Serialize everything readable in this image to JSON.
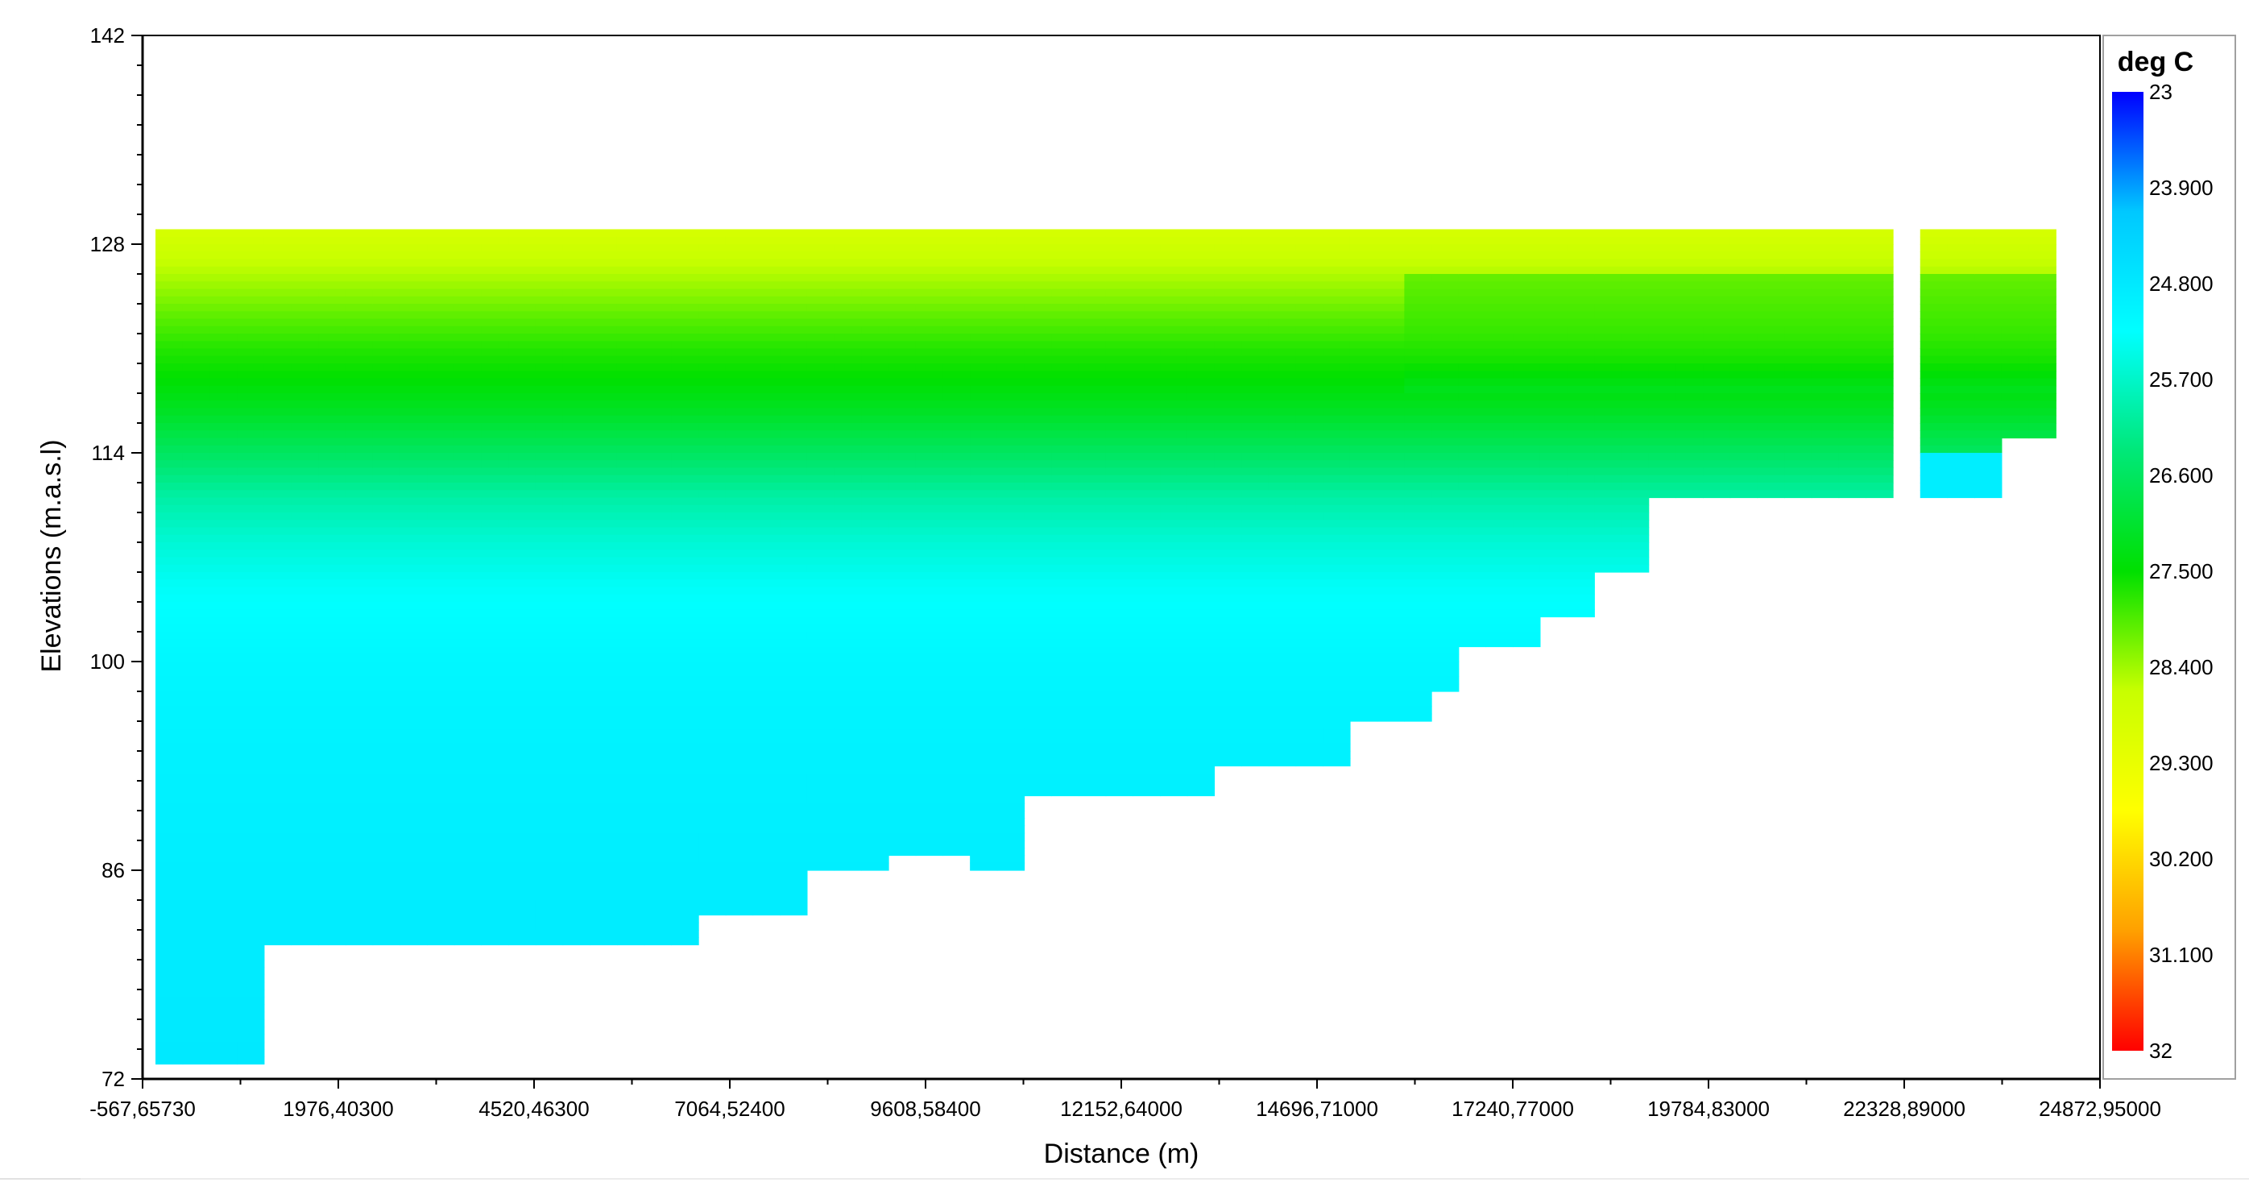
{
  "chart_data": {
    "type": "heatmap",
    "xlabel": "Distance (m)",
    "ylabel": "Elevations (m.a.s.l)",
    "x_ticks": [
      "-567,65730",
      "1976,40300",
      "4520,46300",
      "7064,52400",
      "9608,58400",
      "12152,64000",
      "14696,71000",
      "17240,77000",
      "19784,83000",
      "22328,89000",
      "24872,95000"
    ],
    "x_tick_values": [
      -567.6573,
      1976.403,
      4520.463,
      7064.524,
      9608.584,
      12152.64,
      14696.71,
      17240.77,
      19784.83,
      22328.89,
      24872.95
    ],
    "xlim": [
      -567.6573,
      24872.95
    ],
    "y_ticks": [
      "142",
      "128",
      "114",
      "100",
      "86",
      "72"
    ],
    "y_tick_values": [
      142,
      128,
      114,
      100,
      86,
      72
    ],
    "ylim": [
      72,
      142
    ],
    "colorbar": {
      "title": "deg C",
      "labels": [
        "23",
        "23.900",
        "24.800",
        "25.700",
        "26.600",
        "27.500",
        "28.400",
        "29.300",
        "30.200",
        "31.100",
        "32"
      ],
      "min": 23,
      "max": 32,
      "colormap": [
        "#0000ff",
        "#00c8ff",
        "#00ffff",
        "#00e878",
        "#00e000",
        "#c8ff00",
        "#ffff00",
        "#ffa000",
        "#ff0000"
      ]
    },
    "temperature_profile": {
      "elevation": [
        129,
        126,
        123,
        121,
        119,
        117,
        114,
        111,
        108,
        105,
        100,
        95,
        90,
        85,
        80,
        73
      ],
      "temp": [
        28.9,
        28.5,
        28.0,
        27.7,
        27.5,
        27.2,
        26.6,
        26.0,
        25.6,
        25.3,
        25.1,
        25.0,
        24.95,
        24.9,
        24.85,
        24.8
      ]
    },
    "upstream_profile": {
      "elevation": [
        129,
        125,
        122,
        120,
        118,
        115
      ],
      "temp": [
        28.3,
        28.0,
        27.8,
        27.6,
        27.2,
        26.9
      ]
    },
    "domain": {
      "surface_elevation": 129,
      "bed_steps": [
        {
          "x0": -400,
          "x1": 1000,
          "bottom": 73
        },
        {
          "x0": 1000,
          "x1": 6500,
          "bottom": 81
        },
        {
          "x0": 6500,
          "x1": 8100,
          "bottom": 83
        },
        {
          "x0": 8100,
          "x1": 9000,
          "bottom": 86
        },
        {
          "x0": 9000,
          "x1": 10100,
          "bottom": 87
        },
        {
          "x0": 10100,
          "x1": 10800,
          "bottom": 86
        },
        {
          "x0": 10800,
          "x1": 13400,
          "bottom": 91
        },
        {
          "x0": 13400,
          "x1": 15200,
          "bottom": 93
        },
        {
          "x0": 15200,
          "x1": 16300,
          "bottom": 96
        },
        {
          "x0": 16300,
          "x1": 16700,
          "bottom": 98
        },
        {
          "x0": 16700,
          "x1": 17750,
          "bottom": 101
        },
        {
          "x0": 17750,
          "x1": 18250,
          "bottom": 103
        },
        {
          "x0": 18250,
          "x1": 18850,
          "bottom": 106
        },
        {
          "x0": 18850,
          "x1": 22200,
          "bottom": 111
        },
        {
          "x0": 22200,
          "x1": 22500,
          "bottom": 115
        },
        {
          "x0": 22500,
          "x1": 23550,
          "bottom": 111
        },
        {
          "x0": 23550,
          "x1": 24300,
          "bottom": 115
        }
      ],
      "upstream_patch": {
        "x0": 15800,
        "x1": 24300,
        "top": 126,
        "bottom": 118
      },
      "gap_columns": [
        {
          "x0": 22200,
          "x1": 22500,
          "top": 115
        }
      ],
      "cold_pocket": {
        "x0": 22500,
        "x1": 23550,
        "top": 114,
        "bottom": 111,
        "temp": 24.9
      }
    }
  }
}
